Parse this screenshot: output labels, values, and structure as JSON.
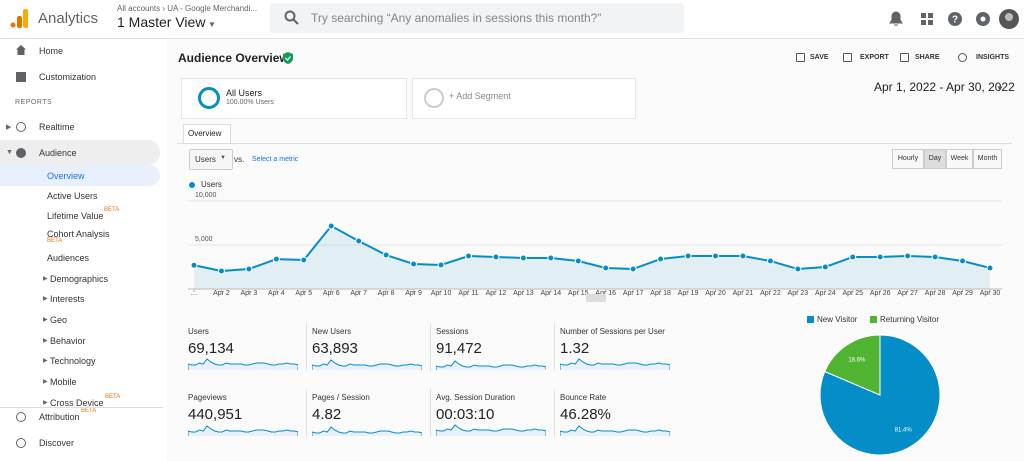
{
  "header": {
    "product": "Analytics",
    "breadcrumb": "All accounts › UA - Google Merchandi...",
    "view": "1 Master View",
    "search_placeholder": "Try searching “Any anomalies in sessions this month?”"
  },
  "sidebar": {
    "top": [
      "Home",
      "Customization"
    ],
    "section": "REPORTS",
    "reports": [
      "Realtime",
      "Audience"
    ],
    "audience": [
      {
        "label": "Overview"
      },
      {
        "label": "Active Users"
      },
      {
        "label": "Lifetime Value",
        "badge": "BETA"
      },
      {
        "label": "Cohort Analysis",
        "badge": "BETA"
      },
      {
        "label": "Audiences"
      },
      {
        "label": "Demographics"
      },
      {
        "label": "Interests"
      },
      {
        "label": "Geo"
      },
      {
        "label": "Behavior"
      },
      {
        "label": "Technology"
      },
      {
        "label": "Mobile"
      },
      {
        "label": "Cross Device",
        "badge": "BETA"
      }
    ],
    "bottom": [
      {
        "label": "Attribution",
        "badge": "BETA"
      },
      {
        "label": "Discover"
      }
    ]
  },
  "page": {
    "title": "Audience Overview",
    "actions": [
      "SAVE",
      "EXPORT",
      "SHARE",
      "INSIGHTS"
    ],
    "segment": {
      "name": "All Users",
      "detail": "100.00% Users"
    },
    "add_segment": "+ Add Segment",
    "date_range": "Apr 1, 2022 - Apr 30, 2022",
    "tab": "Overview",
    "metric_select": "Users",
    "vs": "vs.",
    "select_metric": "Select a metric",
    "granularity": [
      "Hourly",
      "Day",
      "Week",
      "Month"
    ]
  },
  "metrics": [
    {
      "label": "Users",
      "value": "69,134"
    },
    {
      "label": "New Users",
      "value": "63,893"
    },
    {
      "label": "Sessions",
      "value": "91,472"
    },
    {
      "label": "Number of Sessions per User",
      "value": "1.32"
    },
    {
      "label": "Pageviews",
      "value": "440,951"
    },
    {
      "label": "Pages / Session",
      "value": "4.82"
    },
    {
      "label": "Avg. Session Duration",
      "value": "00:03:10"
    },
    {
      "label": "Bounce Rate",
      "value": "46.28%"
    }
  ],
  "chart_data": [
    {
      "type": "line",
      "categories": [
        "…",
        "Apr 2",
        "Apr 3",
        "Apr 4",
        "Apr 5",
        "Apr 6",
        "Apr 7",
        "Apr 8",
        "Apr 9",
        "Apr 10",
        "Apr 11",
        "Apr 12",
        "Apr 13",
        "Apr 14",
        "Apr 15",
        "Apr 16",
        "Apr 17",
        "Apr 18",
        "Apr 19",
        "Apr 20",
        "Apr 21",
        "Apr 22",
        "Apr 23",
        "Apr 24",
        "Apr 25",
        "Apr 26",
        "Apr 27",
        "Apr 28",
        "Apr 29",
        "Apr 30"
      ],
      "series": [
        {
          "name": "Users",
          "color": "#058dc7",
          "values": [
            2700,
            2050,
            2270,
            3400,
            3300,
            7160,
            5450,
            3860,
            2840,
            2730,
            3750,
            3640,
            3520,
            3520,
            3180,
            2390,
            2270,
            3410,
            3750,
            3750,
            3750,
            3180,
            2270,
            2500,
            3640,
            3640,
            3750,
            3640,
            3180,
            2390
          ]
        }
      ],
      "ylim": [
        0,
        10600
      ],
      "yticks": [
        {
          "value": 5000,
          "label": "5,000"
        },
        {
          "value": 10000,
          "label": "10,000"
        }
      ],
      "grid": true
    },
    {
      "type": "pie",
      "categories": [
        "New Visitor",
        "Returning Visitor"
      ],
      "values": [
        81.4,
        18.6
      ],
      "value_labels": [
        "81.4%",
        "18.6%"
      ],
      "colors": [
        "#058dc7",
        "#50b432"
      ],
      "legend": "top"
    }
  ]
}
